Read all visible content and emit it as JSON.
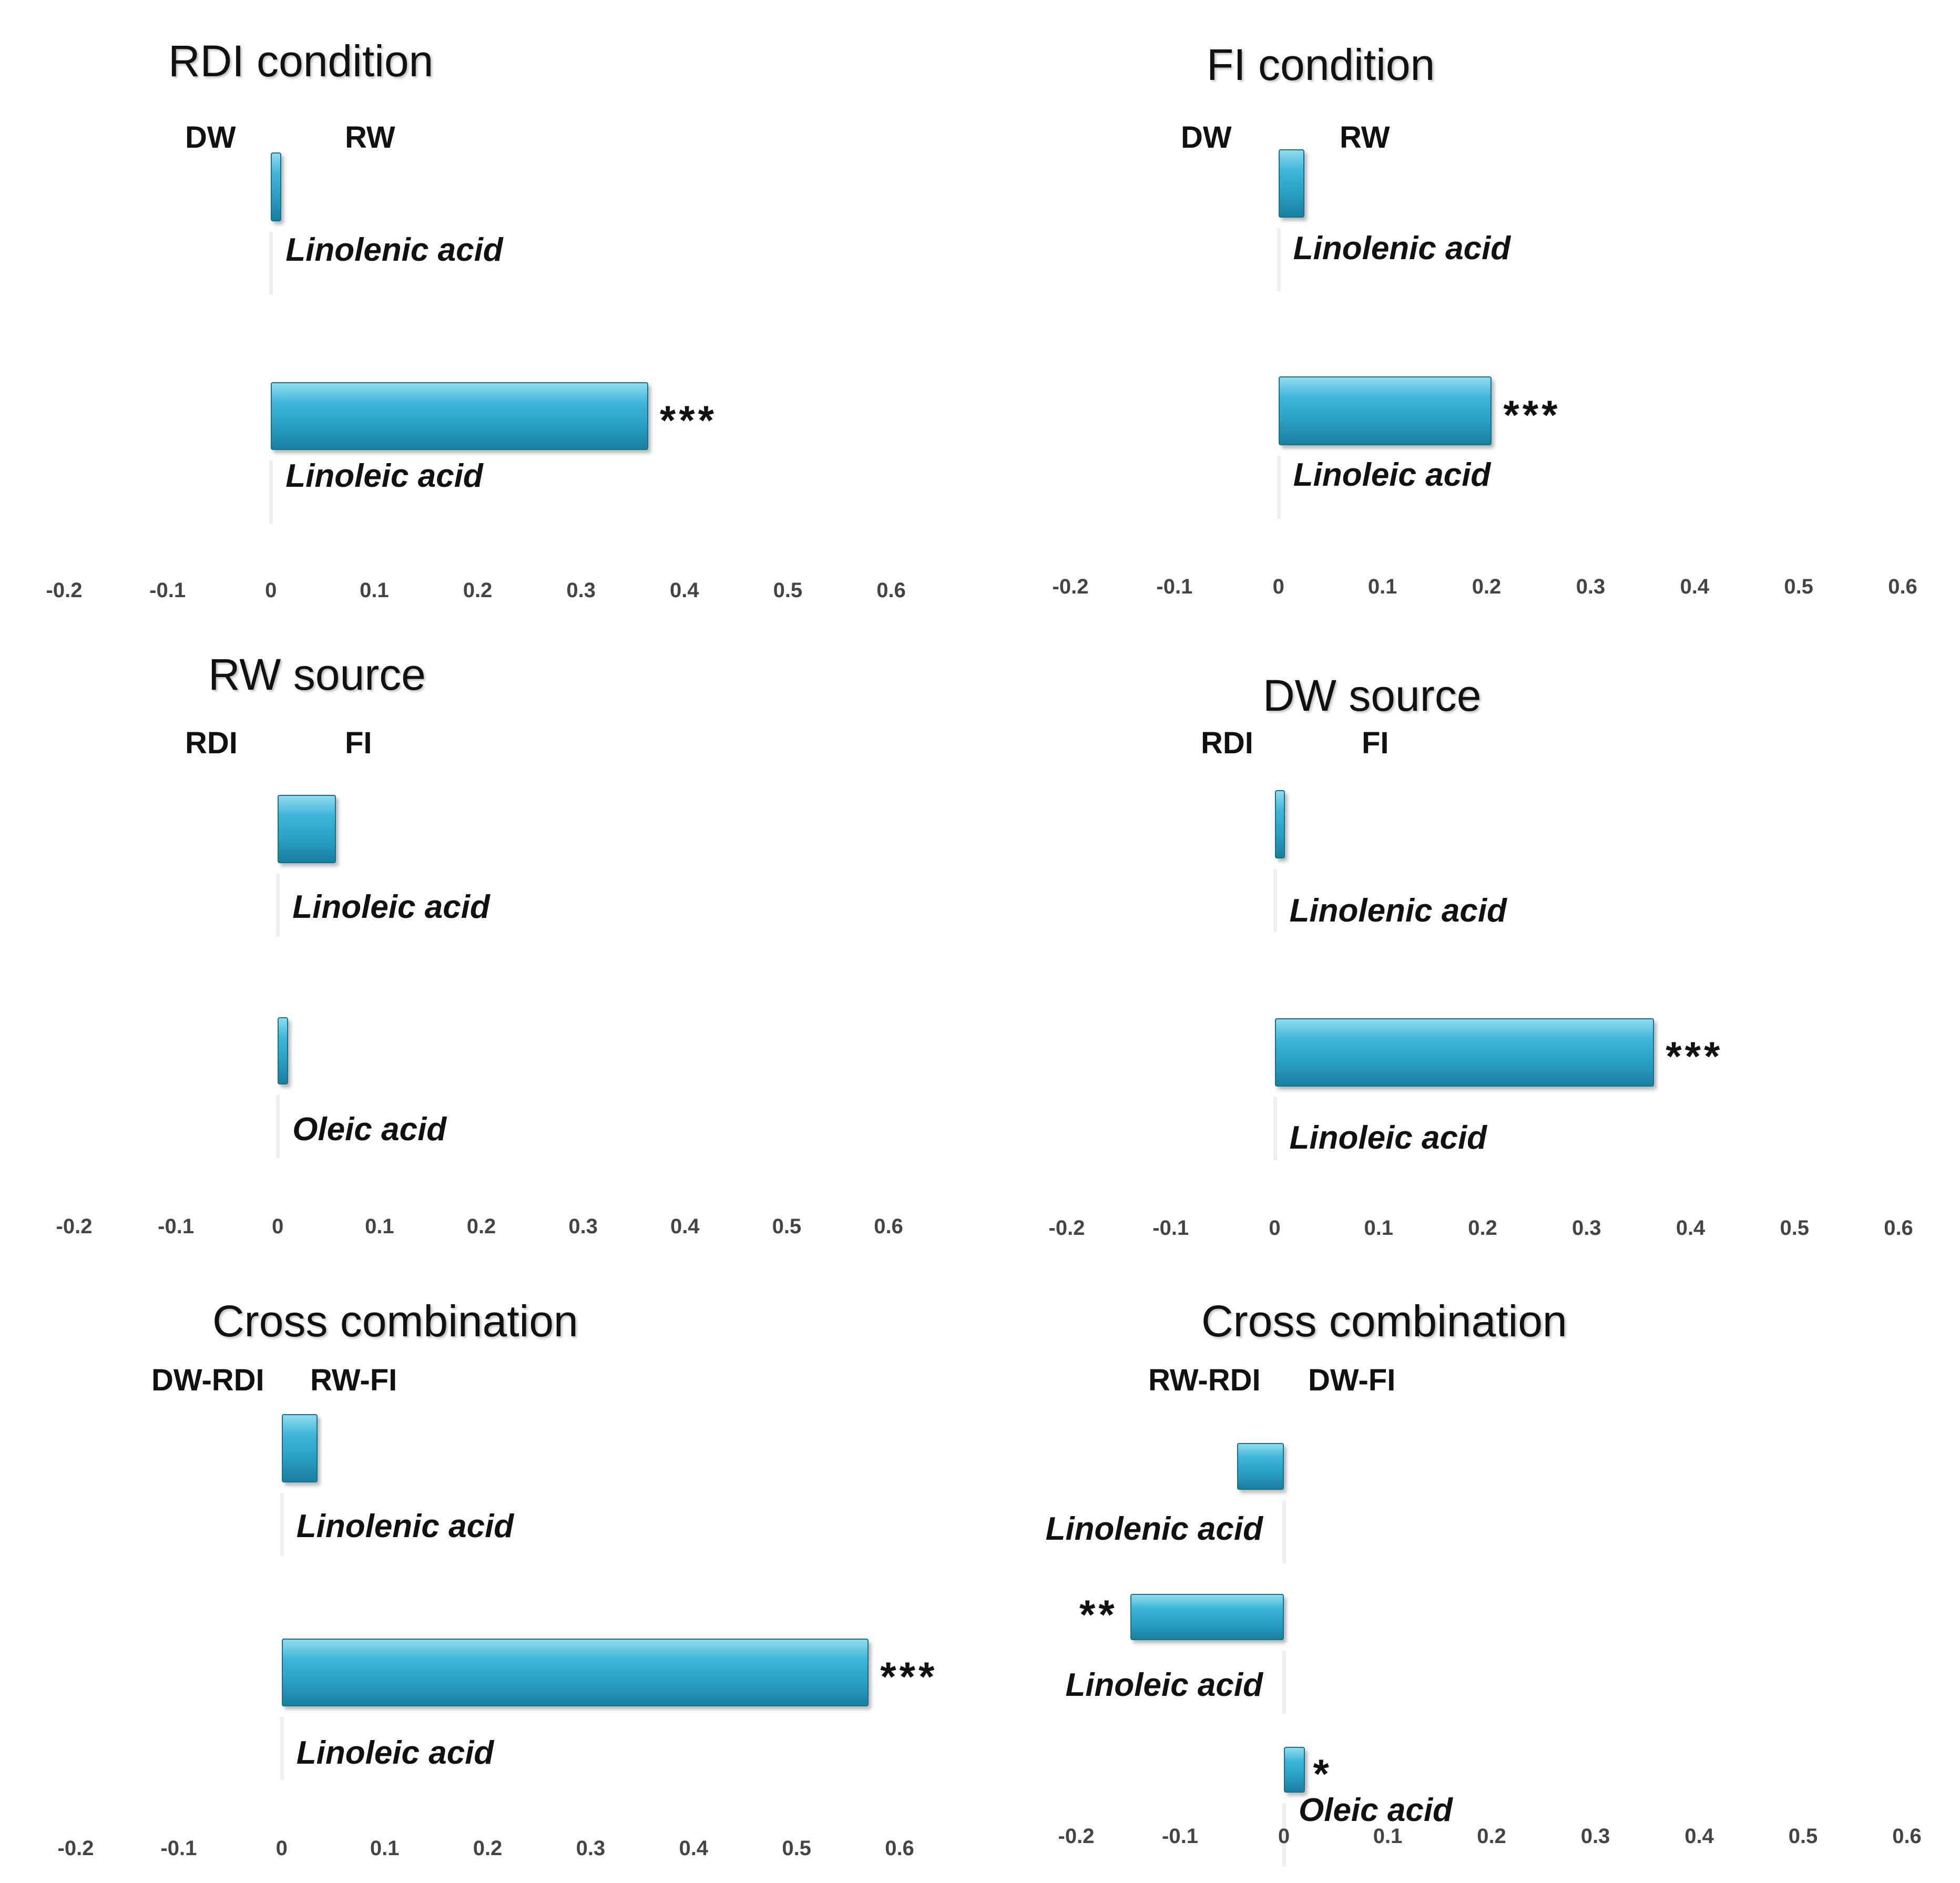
{
  "chart_data": [
    {
      "type": "bar",
      "orientation": "horizontal",
      "title": "RDI condition",
      "group_labels": [
        "DW",
        "RW"
      ],
      "categories": [
        "Linolenic acid",
        "Linoleic acid"
      ],
      "values": [
        0.01,
        0.365
      ],
      "significance": [
        "",
        "***"
      ],
      "xlim": [
        -0.2,
        0.6
      ],
      "ticks": [
        "-0.2",
        "-0.1",
        "0",
        "0.1",
        "0.2",
        "0.3",
        "0.4",
        "0.5",
        "0.6"
      ]
    },
    {
      "type": "bar",
      "orientation": "horizontal",
      "title": "FI condition",
      "group_labels": [
        "DW",
        "RW"
      ],
      "categories": [
        "Linolenic acid",
        "Linoleic acid"
      ],
      "values": [
        0.025,
        0.205
      ],
      "significance": [
        "",
        "***"
      ],
      "xlim": [
        -0.2,
        0.6
      ],
      "ticks": [
        "-0.2",
        "-0.1",
        "0",
        "0.1",
        "0.2",
        "0.3",
        "0.4",
        "0.5",
        "0.6"
      ]
    },
    {
      "type": "bar",
      "orientation": "horizontal",
      "title": "RW source",
      "group_labels": [
        "RDI",
        "FI"
      ],
      "categories": [
        "Linoleic acid",
        "Oleic acid"
      ],
      "values": [
        0.057,
        0.01
      ],
      "significance": [
        "",
        ""
      ],
      "xlim": [
        -0.2,
        0.6
      ],
      "ticks": [
        "-0.2",
        "-0.1",
        "0",
        "0.1",
        "0.2",
        "0.3",
        "0.4",
        "0.5",
        "0.6"
      ]
    },
    {
      "type": "bar",
      "orientation": "horizontal",
      "title": "DW source",
      "group_labels": [
        "RDI",
        "FI"
      ],
      "categories": [
        "Linolenic acid",
        "Linoleic acid"
      ],
      "values": [
        0.01,
        0.365
      ],
      "significance": [
        "",
        "***"
      ],
      "xlim": [
        -0.2,
        0.6
      ],
      "ticks": [
        "-0.2",
        "-0.1",
        "0",
        "0.1",
        "0.2",
        "0.3",
        "0.4",
        "0.5",
        "0.6"
      ]
    },
    {
      "type": "bar",
      "orientation": "horizontal",
      "title": "Cross combination",
      "group_labels": [
        "DW-RDI",
        "RW-FI"
      ],
      "categories": [
        "Linolenic acid",
        "Linoleic acid"
      ],
      "values": [
        0.035,
        0.57
      ],
      "significance": [
        "",
        "***"
      ],
      "xlim": [
        -0.2,
        0.6
      ],
      "ticks": [
        "-0.2",
        "-0.1",
        "0",
        "0.1",
        "0.2",
        "0.3",
        "0.4",
        "0.5",
        "0.6"
      ]
    },
    {
      "type": "bar",
      "orientation": "horizontal",
      "title": "Cross combination",
      "group_labels": [
        "RW-RDI",
        "DW-FI"
      ],
      "categories": [
        "Linolenic acid",
        "Linoleic acid",
        "Oleic acid"
      ],
      "values": [
        -0.045,
        -0.148,
        0.02
      ],
      "significance": [
        "",
        "**",
        "*"
      ],
      "xlim": [
        -0.2,
        0.6
      ],
      "ticks": [
        "-0.2",
        "-0.1",
        "0",
        "0.1",
        "0.2",
        "0.3",
        "0.4",
        "0.5",
        "0.6"
      ]
    }
  ]
}
